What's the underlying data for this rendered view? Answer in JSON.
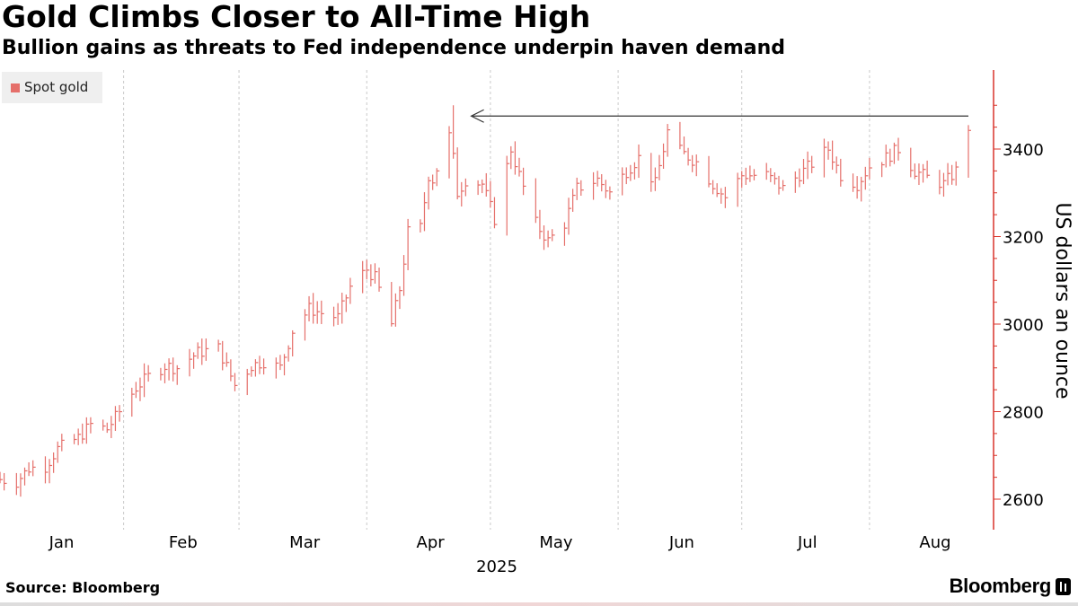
{
  "header": {
    "title": "Gold Climbs Closer to All-Time High",
    "subtitle": "Bullion gains as threats to Fed independence underpin haven demand"
  },
  "footer": {
    "source": "Source: Bloomberg",
    "brand": "Bloomberg"
  },
  "legend": {
    "label": "Spot gold"
  },
  "colors": {
    "series": "#e56f6a",
    "axis": "#d9342b",
    "grid": "#c9c9c9",
    "arrow": "#333333"
  },
  "chart_data": {
    "type": "line",
    "style": "ohlc-bars",
    "title": "Gold Climbs Closer to All-Time High",
    "subtitle": "Bullion gains as threats to Fed independence underpin haven demand",
    "ylabel": "US dollars an ounce",
    "xlabel": "2025",
    "ylim": [
      2560,
      3580
    ],
    "yticks": [
      2600,
      2800,
      3000,
      3200,
      3400
    ],
    "y_axis_side": "right",
    "x_month_labels": [
      "Jan",
      "Feb",
      "Mar",
      "Apr",
      "May",
      "Jun",
      "Jul",
      "Aug"
    ],
    "grid": "vertical dashed month lines",
    "legend_position": "top-left",
    "annotation": "horizontal arrow pointing back from the latest price to the April 22 all-time high",
    "series": [
      {
        "name": "Spot gold",
        "x": [
          "2025-01-02",
          "2025-01-06",
          "2025-01-09",
          "2025-01-13",
          "2025-01-16",
          "2025-01-21",
          "2025-01-24",
          "2025-01-28",
          "2025-01-31",
          "2025-02-04",
          "2025-02-07",
          "2025-02-11",
          "2025-02-14",
          "2025-02-19",
          "2025-02-24",
          "2025-02-28",
          "2025-03-04",
          "2025-03-07",
          "2025-03-11",
          "2025-03-14",
          "2025-03-18",
          "2025-03-21",
          "2025-03-25",
          "2025-03-28",
          "2025-04-01",
          "2025-04-03",
          "2025-04-07",
          "2025-04-09",
          "2025-04-11",
          "2025-04-14",
          "2025-04-16",
          "2025-04-17",
          "2025-04-21",
          "2025-04-22",
          "2025-04-23",
          "2025-04-25",
          "2025-04-29",
          "2025-05-02",
          "2025-05-06",
          "2025-05-08",
          "2025-05-12",
          "2025-05-15",
          "2025-05-19",
          "2025-05-22",
          "2025-05-27",
          "2025-05-30",
          "2025-06-03",
          "2025-06-06",
          "2025-06-10",
          "2025-06-13",
          "2025-06-16",
          "2025-06-20",
          "2025-06-24",
          "2025-06-27",
          "2025-07-01",
          "2025-07-07",
          "2025-07-11",
          "2025-07-16",
          "2025-07-22",
          "2025-07-25",
          "2025-07-29",
          "2025-08-01",
          "2025-08-05",
          "2025-08-08",
          "2025-08-12",
          "2025-08-15",
          "2025-08-19",
          "2025-08-22",
          "2025-08-25"
        ],
        "values": [
          2645,
          2640,
          2670,
          2675,
          2715,
          2740,
          2770,
          2760,
          2800,
          2855,
          2880,
          2905,
          2900,
          2935,
          2945,
          2860,
          2905,
          2915,
          2900,
          2985,
          3035,
          3025,
          3015,
          3085,
          3125,
          3105,
          3000,
          3080,
          3210,
          3220,
          3340,
          3330,
          3430,
          3380,
          3300,
          3330,
          3320,
          3240,
          3400,
          3340,
          3230,
          3190,
          3230,
          3310,
          3330,
          3300,
          3350,
          3380,
          3320,
          3440,
          3395,
          3370,
          3320,
          3290,
          3340,
          3340,
          3310,
          3350,
          3400,
          3340,
          3320,
          3360,
          3380,
          3400,
          3350,
          3335,
          3320,
          3350,
          3450
        ],
        "high": 3500,
        "high_date": "2025-04-22"
      }
    ]
  }
}
